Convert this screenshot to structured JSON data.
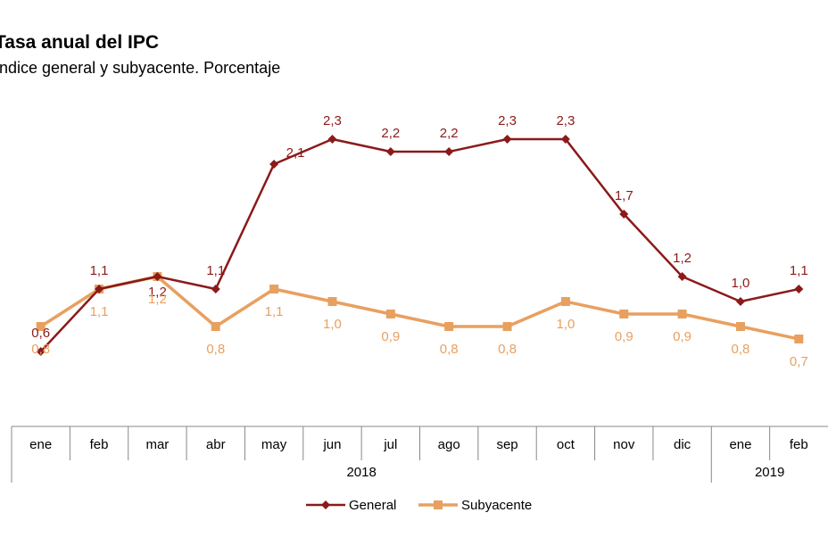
{
  "chart_data": {
    "type": "line",
    "title": "Tasa anual del IPC",
    "subtitle": "Índice general y subyacente. Porcentaje",
    "categories": [
      "ene",
      "feb",
      "mar",
      "abr",
      "may",
      "jun",
      "jul",
      "ago",
      "sep",
      "oct",
      "nov",
      "dic",
      "ene",
      "feb"
    ],
    "year_groups": [
      {
        "label": "2018",
        "start": 0,
        "end": 11
      },
      {
        "label": "2019",
        "start": 12,
        "end": 13
      }
    ],
    "series": [
      {
        "name": "General",
        "color": "#8B1A1A",
        "marker": "diamond",
        "values": [
          0.6,
          1.1,
          1.2,
          1.1,
          2.1,
          2.3,
          2.2,
          2.2,
          2.3,
          2.3,
          1.7,
          1.2,
          1.0,
          1.1
        ],
        "labels": [
          "0,6",
          "1,1",
          "1,2",
          "1,1",
          "2,1",
          "2,3",
          "2,2",
          "2,2",
          "2,3",
          "2,3",
          "1,7",
          "1,2",
          "1,0",
          "1,1"
        ]
      },
      {
        "name": "Subyacente",
        "color": "#E8A060",
        "marker": "square",
        "values": [
          0.8,
          1.1,
          1.2,
          0.8,
          1.1,
          1.0,
          0.9,
          0.8,
          0.8,
          1.0,
          0.9,
          0.9,
          0.8,
          0.7
        ],
        "labels": [
          "0,8",
          "1,1",
          "1,2",
          "0,8",
          "1,1",
          "1,0",
          "0,9",
          "0,8",
          "0,8",
          "1,0",
          "0,9",
          "0,9",
          "0,8",
          "0,7"
        ]
      }
    ],
    "ylim": [
      0,
      2.6
    ],
    "grid": false,
    "legend_position": "bottom"
  }
}
